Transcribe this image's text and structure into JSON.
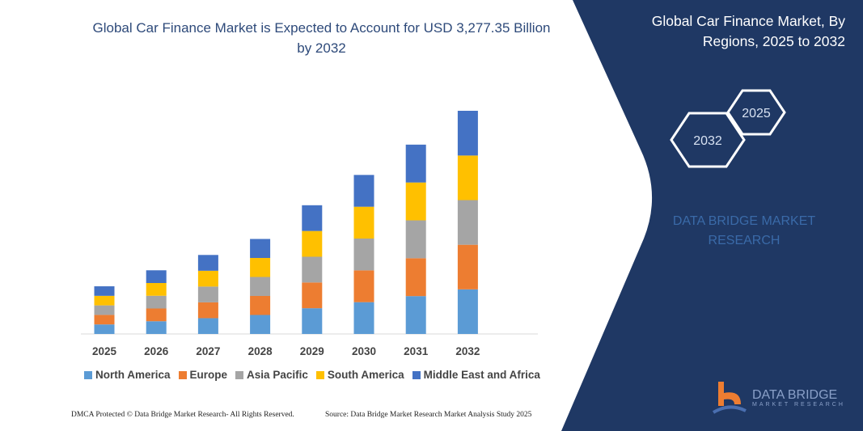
{
  "header": {
    "title": "Global Car Finance Market is Expected to Account for USD 3,277.35 Billion by 2032"
  },
  "side_panel": {
    "title": "Global Car Finance Market, By Regions, 2025 to 2032",
    "hex_start": "2025",
    "hex_end": "2032",
    "watermark": "DATA BRIDGE MARKET RESEARCH",
    "logo_name": "DATA BRIDGE",
    "logo_sub": "MARKET RESEARCH",
    "background_color": "#1f3864"
  },
  "footer": {
    "left": "DMCA Protected © Data Bridge Market Research- All Rights Reserved.",
    "right": "Source: Data Bridge Market Research  Market Analysis Study 2025"
  },
  "chart_data": {
    "type": "bar",
    "stacked": true,
    "title": "Global Car Finance Market is Expected to Account for USD 3,277.35 Billion by 2032",
    "xlabel": "",
    "ylabel": "",
    "categories": [
      "2025",
      "2026",
      "2027",
      "2028",
      "2029",
      "2030",
      "2031",
      "2032"
    ],
    "legend_position": "bottom",
    "grid": false,
    "series": [
      {
        "name": "North America",
        "color": "#5b9bd5",
        "values": [
          140,
          187,
          232,
          279,
          378,
          467,
          556,
          655
        ]
      },
      {
        "name": "Europe",
        "color": "#ed7d31",
        "values": [
          140,
          187,
          232,
          279,
          378,
          467,
          556,
          655
        ]
      },
      {
        "name": "Asia Pacific",
        "color": "#a5a5a5",
        "values": [
          140,
          187,
          232,
          279,
          378,
          467,
          556,
          655
        ]
      },
      {
        "name": "South America",
        "color": "#ffc000",
        "values": [
          140,
          187,
          232,
          279,
          378,
          467,
          556,
          655
        ]
      },
      {
        "name": "Middle East and Africa",
        "color": "#4472c4",
        "values": [
          140,
          187,
          232,
          279,
          378,
          467,
          556,
          657
        ]
      }
    ]
  }
}
